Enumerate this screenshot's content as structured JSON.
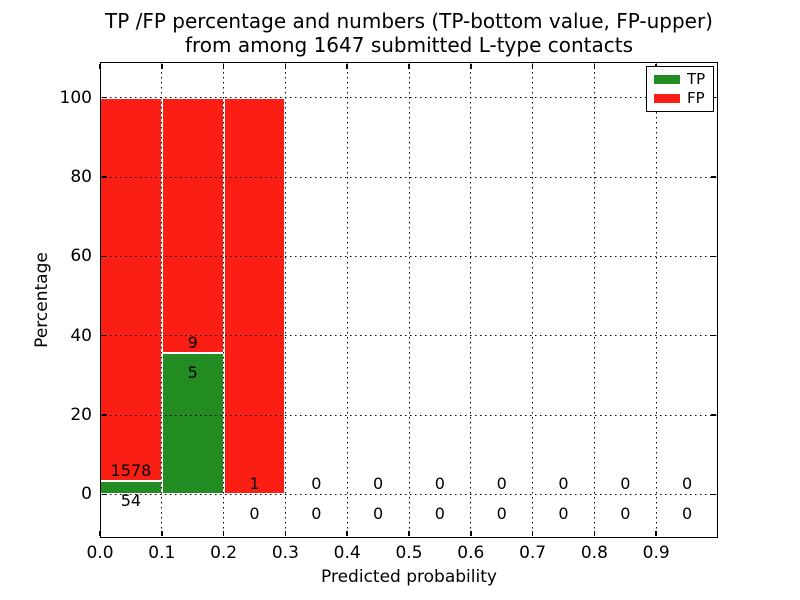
{
  "figure": {
    "title_line1": "TP /FP percentage and numbers (TP-bottom value, FP-upper)",
    "title_line2": "from among 1647 submitted L-type contacts",
    "xlabel": "Predicted probability",
    "ylabel": "Percentage"
  },
  "axes": {
    "ytick_labels": [
      "0",
      "20",
      "40",
      "60",
      "80",
      "100"
    ],
    "xtick_labels": [
      "0.0",
      "0.1",
      "0.2",
      "0.3",
      "0.4",
      "0.5",
      "0.6",
      "0.7",
      "0.8",
      "0.9"
    ]
  },
  "legend": {
    "items": [
      {
        "label": "TP",
        "color": "#228b22"
      },
      {
        "label": "FP",
        "color": "#fa1e14"
      }
    ]
  },
  "colors": {
    "tp": "#228b22",
    "fp": "#fa1e14",
    "grid": "#000000",
    "text": "#000000",
    "bar_edge": "#ffffff"
  },
  "chart_data": {
    "type": "bar",
    "stacked": true,
    "title": "TP /FP percentage and numbers (TP-bottom value, FP-upper) from among 1647 submitted L-type contacts",
    "xlabel": "Predicted probability",
    "ylabel": "Percentage",
    "xlim": [
      0.0,
      1.0
    ],
    "ylim": [
      -11,
      109
    ],
    "grid": "dotted",
    "legend_position": "upper right",
    "total_submitted": 1647,
    "series_names": [
      "TP",
      "FP"
    ],
    "annotation_rule": "TP count below, FP count above the TP segment top in each bin",
    "bins": [
      {
        "x0": 0.0,
        "x1": 0.1,
        "tp_count": 54,
        "fp_count": 1578,
        "tp_pct": 3.31,
        "fp_pct": 96.69
      },
      {
        "x0": 0.1,
        "x1": 0.2,
        "tp_count": 5,
        "fp_count": 9,
        "tp_pct": 35.71,
        "fp_pct": 64.29
      },
      {
        "x0": 0.2,
        "x1": 0.3,
        "tp_count": 0,
        "fp_count": 1,
        "tp_pct": 0,
        "fp_pct": 100
      },
      {
        "x0": 0.3,
        "x1": 0.4,
        "tp_count": 0,
        "fp_count": 0,
        "tp_pct": 0,
        "fp_pct": 0
      },
      {
        "x0": 0.4,
        "x1": 0.5,
        "tp_count": 0,
        "fp_count": 0,
        "tp_pct": 0,
        "fp_pct": 0
      },
      {
        "x0": 0.5,
        "x1": 0.6,
        "tp_count": 0,
        "fp_count": 0,
        "tp_pct": 0,
        "fp_pct": 0
      },
      {
        "x0": 0.6,
        "x1": 0.7,
        "tp_count": 0,
        "fp_count": 0,
        "tp_pct": 0,
        "fp_pct": 0
      },
      {
        "x0": 0.7,
        "x1": 0.8,
        "tp_count": 0,
        "fp_count": 0,
        "tp_pct": 0,
        "fp_pct": 0
      },
      {
        "x0": 0.8,
        "x1": 0.9,
        "tp_count": 0,
        "fp_count": 0,
        "tp_pct": 0,
        "fp_pct": 0
      },
      {
        "x0": 0.9,
        "x1": 1.0,
        "tp_count": 0,
        "fp_count": 0,
        "tp_pct": 0,
        "fp_pct": 0
      }
    ]
  }
}
